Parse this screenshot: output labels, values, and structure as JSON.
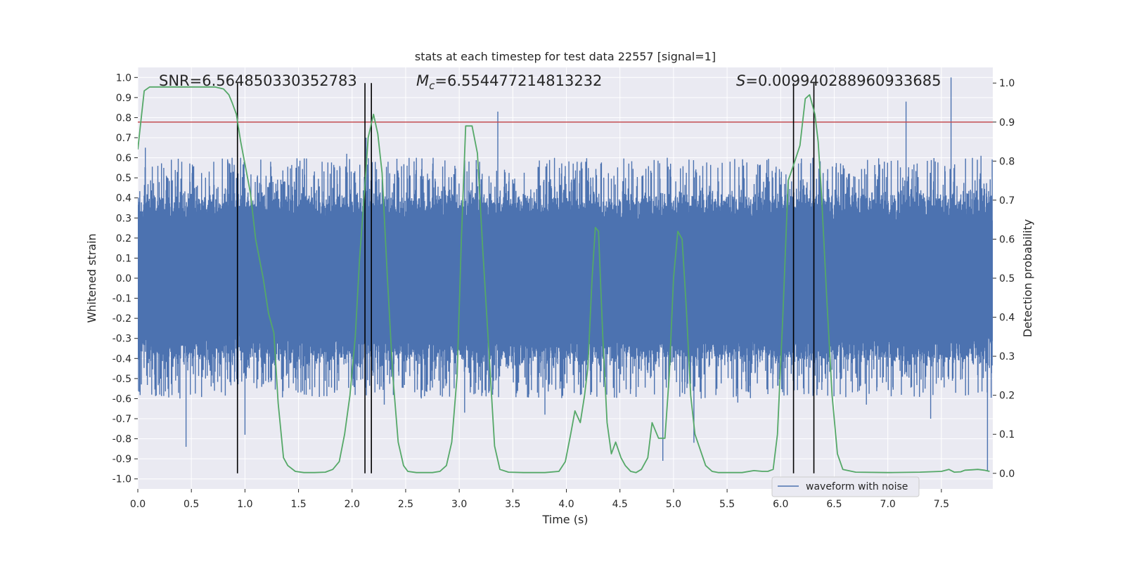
{
  "chart_data": {
    "type": "line",
    "title": "stats at each timestep for test data 22557 [signal=1]",
    "xlabel": "Time (s)",
    "ylabel_left": "Whitened strain",
    "ylabel_right": "Detection probability",
    "xlim": [
      0.0,
      7.98
    ],
    "ylim_left": [
      -1.05,
      1.05
    ],
    "ylim_right": [
      -0.04,
      1.04
    ],
    "xticks": [
      "0.0",
      "0.5",
      "1.0",
      "1.5",
      "2.0",
      "2.5",
      "3.0",
      "3.5",
      "4.0",
      "4.5",
      "5.0",
      "5.5",
      "6.0",
      "6.5",
      "7.0",
      "7.5"
    ],
    "yticks_left": [
      "1.0",
      "0.9",
      "0.8",
      "0.7",
      "0.6",
      "0.5",
      "0.4",
      "0.3",
      "0.2",
      "0.1",
      "0.0",
      "-0.1",
      "-0.2",
      "-0.3",
      "-0.4",
      "-0.5",
      "-0.6",
      "-0.7",
      "-0.8",
      "-0.9",
      "-1.0"
    ],
    "yticks_right": [
      "1.0",
      "0.9",
      "0.8",
      "0.7",
      "0.6",
      "0.5",
      "0.4",
      "0.3",
      "0.2",
      "0.1",
      "0.0"
    ],
    "grid": true,
    "legend": {
      "placement": "lower-right",
      "entries": [
        "waveform with noise"
      ]
    },
    "annotations": {
      "snr": "SNR=6.564850330352783",
      "mc_symbol": "M",
      "mc_sub": "c",
      "mc_value": "=6.554477214813232",
      "s_symbol": "S",
      "s_value": "=0.009940288960933685"
    },
    "colors": {
      "waveform": "#4c72b0",
      "probability": "#55a868",
      "threshold": "#c44e52",
      "markers": "#000000",
      "axes_bg": "#eaeaf2",
      "grid": "#ffffff"
    },
    "threshold_probability": 0.9,
    "vertical_markers_x": [
      0.93,
      2.12,
      2.18,
      6.12,
      6.31
    ],
    "waveform": {
      "name": "waveform with noise",
      "core_amplitude": 0.26,
      "spike_amplitude": 0.6,
      "peaks": [
        [
          0.07,
          0.65
        ],
        [
          0.13,
          -0.58
        ],
        [
          0.41,
          0.58
        ],
        [
          0.45,
          -0.84
        ],
        [
          0.88,
          0.6
        ],
        [
          0.93,
          -0.78
        ],
        [
          0.96,
          0.6
        ],
        [
          1.0,
          -0.78
        ],
        [
          1.72,
          0.58
        ],
        [
          1.95,
          0.62
        ],
        [
          2.13,
          0.7
        ],
        [
          2.18,
          0.6
        ],
        [
          2.3,
          -0.63
        ],
        [
          2.6,
          0.6
        ],
        [
          3.05,
          -0.67
        ],
        [
          3.19,
          0.58
        ],
        [
          3.36,
          0.83
        ],
        [
          3.73,
          -0.57
        ],
        [
          3.8,
          -0.68
        ],
        [
          4.1,
          0.58
        ],
        [
          4.9,
          -0.91
        ],
        [
          5.19,
          -0.82
        ],
        [
          5.6,
          -0.62
        ],
        [
          6.3,
          0.6
        ],
        [
          6.8,
          -0.63
        ],
        [
          7.17,
          0.88
        ],
        [
          7.4,
          -0.7
        ],
        [
          7.59,
          1.0
        ],
        [
          7.87,
          0.61
        ],
        [
          7.93,
          -0.96
        ]
      ]
    },
    "probability": {
      "x": [
        0.0,
        0.06,
        0.11,
        0.2,
        0.4,
        0.6,
        0.72,
        0.8,
        0.85,
        0.88,
        0.92,
        0.96,
        1.05,
        1.1,
        1.17,
        1.22,
        1.27,
        1.31,
        1.36,
        1.4,
        1.47,
        1.55,
        1.65,
        1.75,
        1.82,
        1.88,
        1.93,
        1.98,
        2.03,
        2.07,
        2.11,
        2.15,
        2.2,
        2.24,
        2.28,
        2.33,
        2.38,
        2.43,
        2.48,
        2.52,
        2.6,
        2.75,
        2.82,
        2.88,
        2.93,
        2.98,
        3.02,
        3.06,
        3.12,
        3.17,
        3.22,
        3.28,
        3.33,
        3.38,
        3.46,
        3.6,
        3.8,
        3.93,
        3.99,
        4.04,
        4.08,
        4.13,
        4.17,
        4.2,
        4.24,
        4.27,
        4.3,
        4.34,
        4.38,
        4.42,
        4.46,
        4.51,
        4.55,
        4.6,
        4.65,
        4.7,
        4.76,
        4.8,
        4.86,
        4.92,
        4.96,
        5.0,
        5.04,
        5.08,
        5.12,
        5.16,
        5.2,
        5.25,
        5.3,
        5.36,
        5.42,
        5.53,
        5.64,
        5.75,
        5.83,
        5.88,
        5.93,
        5.97,
        6.02,
        6.07,
        6.12,
        6.18,
        6.23,
        6.27,
        6.32,
        6.35,
        6.38,
        6.43,
        6.48,
        6.53,
        6.58,
        6.7,
        7.0,
        7.3,
        7.5,
        7.57,
        7.62,
        7.68,
        7.72,
        7.78,
        7.84,
        7.9,
        7.95
      ],
      "p": [
        0.83,
        0.98,
        0.99,
        0.99,
        0.99,
        0.99,
        0.99,
        0.985,
        0.97,
        0.95,
        0.92,
        0.85,
        0.72,
        0.6,
        0.5,
        0.41,
        0.36,
        0.18,
        0.04,
        0.02,
        0.005,
        0.002,
        0.002,
        0.003,
        0.01,
        0.03,
        0.1,
        0.2,
        0.35,
        0.55,
        0.7,
        0.86,
        0.92,
        0.87,
        0.77,
        0.5,
        0.25,
        0.08,
        0.02,
        0.005,
        0.002,
        0.002,
        0.005,
        0.02,
        0.08,
        0.25,
        0.6,
        0.89,
        0.89,
        0.82,
        0.57,
        0.3,
        0.07,
        0.01,
        0.003,
        0.002,
        0.002,
        0.005,
        0.03,
        0.1,
        0.16,
        0.13,
        0.2,
        0.27,
        0.5,
        0.63,
        0.62,
        0.35,
        0.13,
        0.05,
        0.08,
        0.04,
        0.02,
        0.005,
        0.002,
        0.01,
        0.04,
        0.13,
        0.09,
        0.09,
        0.25,
        0.5,
        0.62,
        0.6,
        0.42,
        0.2,
        0.1,
        0.06,
        0.02,
        0.005,
        0.002,
        0.002,
        0.002,
        0.007,
        0.005,
        0.005,
        0.01,
        0.1,
        0.4,
        0.75,
        0.79,
        0.84,
        0.96,
        0.97,
        0.92,
        0.85,
        0.72,
        0.45,
        0.2,
        0.05,
        0.01,
        0.003,
        0.002,
        0.003,
        0.005,
        0.01,
        0.003,
        0.004,
        0.008,
        0.009,
        0.01,
        0.008,
        0.005
      ]
    }
  }
}
